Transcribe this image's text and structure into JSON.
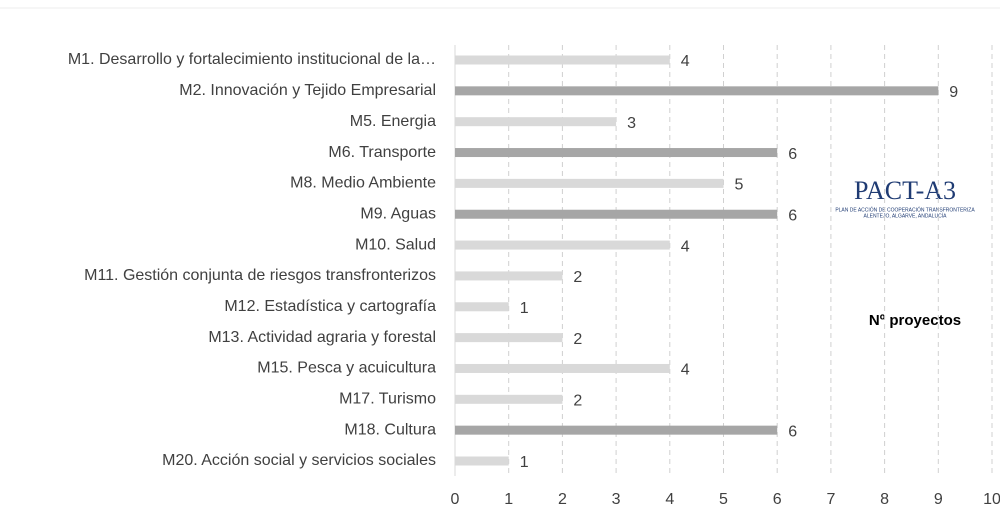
{
  "chart_data": {
    "type": "barh",
    "categories": [
      "M1. Desarrollo y fortalecimiento institucional de la…",
      "M2. Innovación y Tejido Empresarial",
      "M5. Energia",
      "M6. Transporte",
      "M8. Medio Ambiente",
      "M9. Aguas",
      "M10. Salud",
      "M11. Gestión conjunta de riesgos transfronterizos",
      "M12. Estadística y cartografía",
      "M13. Actividad agraria y forestal",
      "M15. Pesca y acuicultura",
      "M17. Turismo",
      "M18. Cultura",
      "M20. Acción social y servicios sociales"
    ],
    "values": [
      4,
      9,
      3,
      6,
      5,
      6,
      4,
      2,
      1,
      2,
      4,
      2,
      6,
      1
    ],
    "colors": [
      "#d9d9d9",
      "#a6a6a6",
      "#d9d9d9",
      "#a6a6a6",
      "#d9d9d9",
      "#a6a6a6",
      "#d9d9d9",
      "#d9d9d9",
      "#d9d9d9",
      "#d9d9d9",
      "#d9d9d9",
      "#d9d9d9",
      "#a6a6a6",
      "#d9d9d9"
    ],
    "xlim": [
      0,
      10
    ],
    "xticks": [
      0,
      1,
      2,
      3,
      4,
      5,
      6,
      7,
      8,
      9,
      10
    ],
    "grid": true,
    "annotation": "Nº proyectos",
    "logo": {
      "name": "PACT-A3",
      "line1": "PLAN DE ACCIÓN DE COOPERACIÓN TRANSFRONTERIZA",
      "line2": "ALENTEJO, ALGARVE, ANDALUCÍA"
    }
  }
}
